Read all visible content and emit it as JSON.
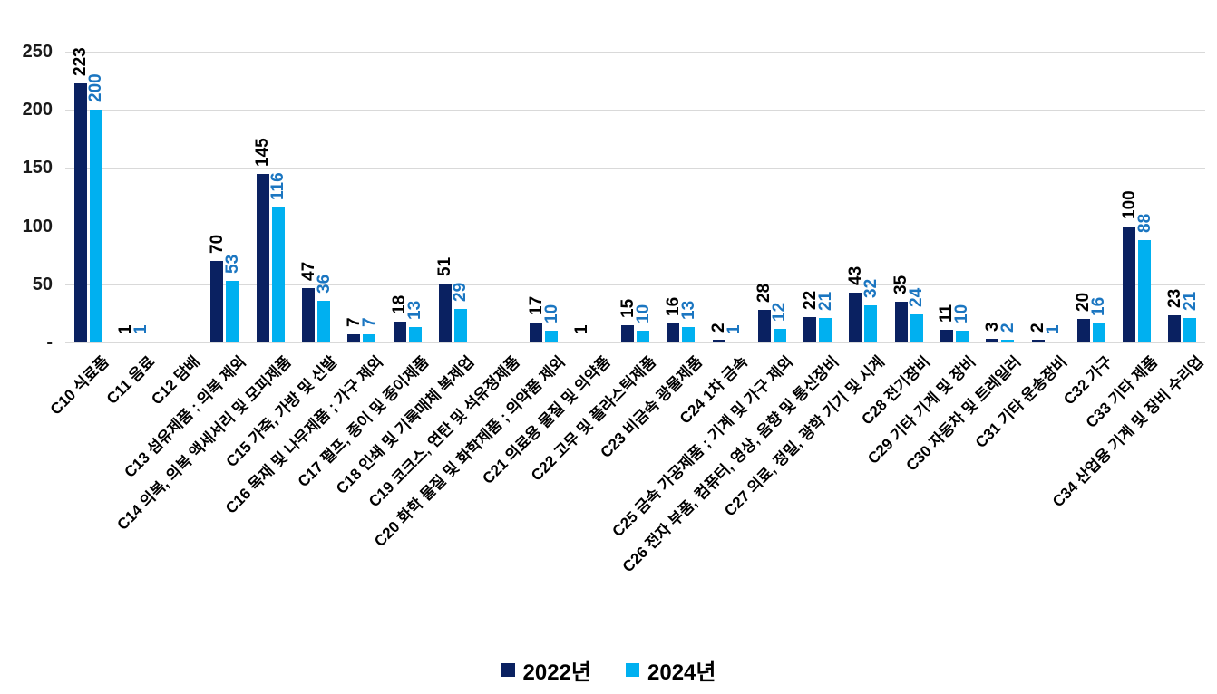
{
  "chart_data": {
    "type": "bar",
    "title": "",
    "categories": [
      "C10 식료품",
      "C11 음료",
      "C12 담배",
      "C13 섬유제품 ; 의복 제외",
      "C14 의복, 의복 액세서리 및 모피제품",
      "C15 가죽, 가방 및 신발",
      "C16 목재 및 나무제품 ; 가구 제외",
      "C17 펄프, 종이 및 종이제품",
      "C18 인쇄 및 기록매체 복제업",
      "C19 코크스, 연탄 및 석유정제품",
      "C20 화학 물질 및 화학제품 ; 의약품 제외",
      "C21 의료용 물질 및 의약품",
      "C22 고무 및 플라스틱제품",
      "C23 비금속 광물제품",
      "C24 1차 금속",
      "C25 금속 가공제품 ; 기계 및 가구 제외",
      "C26 전자 부품, 컴퓨터, 영상, 음향 및 통신장비",
      "C27 의료, 정밀, 광학 기기 및 시계",
      "C28 전기장비",
      "C29 기타 기계 및 장비",
      "C30 자동차 및 트레일러",
      "C31 기타 운송장비",
      "C32 가구",
      "C33 기타 제품",
      "C34 산업용 기계 및 장비 수리업"
    ],
    "series": [
      {
        "name": "2022년",
        "color": "#0a2161",
        "label_color": "#000000",
        "values": [
          223,
          1,
          null,
          70,
          145,
          47,
          7,
          18,
          51,
          null,
          17,
          1,
          15,
          16,
          2,
          28,
          22,
          43,
          35,
          11,
          3,
          2,
          20,
          100,
          23
        ]
      },
      {
        "name": "2024년",
        "color": "#00b0f0",
        "label_color": "#1b76c1",
        "values": [
          200,
          1,
          null,
          53,
          116,
          36,
          7,
          13,
          29,
          null,
          10,
          null,
          10,
          13,
          1,
          12,
          21,
          32,
          24,
          10,
          2,
          1,
          16,
          88,
          21
        ]
      }
    ],
    "xlabel": "",
    "ylabel": "",
    "ylim": [
      0,
      250
    ],
    "ytick_step": 50,
    "ytick_labels": [
      "-",
      "50",
      "100",
      "150",
      "200",
      "250"
    ],
    "grid": true,
    "grid_color": "#d9d9d9",
    "axis_text_color": "#1a1a1a",
    "legend_position": "bottom",
    "value_labels_shown": true,
    "value_label_rotation_deg": 90,
    "category_label_rotation_deg": 45
  }
}
